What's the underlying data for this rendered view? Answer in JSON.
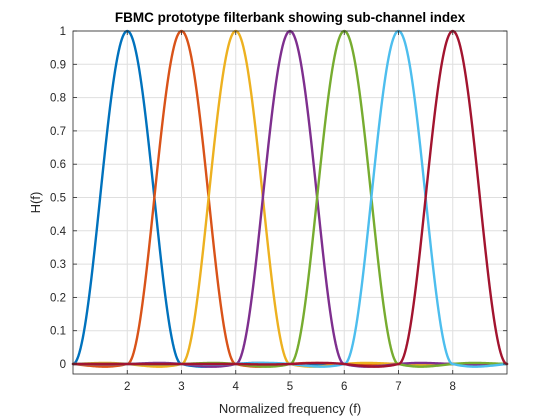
{
  "chart_data": {
    "type": "line",
    "title": "FBMC prototype filterbank showing sub-channel index",
    "xlabel": "Normalized frequency (f)",
    "ylabel": "H(f)",
    "xlim": [
      1,
      9
    ],
    "ylim": [
      -0.03,
      1.0
    ],
    "x_ticks": [
      2,
      3,
      4,
      5,
      6,
      7,
      8
    ],
    "y_ticks": [
      0,
      0.1,
      0.2,
      0.3,
      0.4,
      0.5,
      0.6,
      0.7,
      0.8,
      0.9,
      1
    ],
    "y_tick_labels": [
      "0",
      "0.1",
      "0.2",
      "0.3",
      "0.4",
      "0.5",
      "0.6",
      "0.7",
      "0.8",
      "0.9",
      "1"
    ],
    "grid": true,
    "legend": "none",
    "series": [
      {
        "color": "#0072bd",
        "peak_x": 2,
        "x": [
          1.0,
          1.2,
          1.4,
          1.6,
          1.8,
          2.0,
          2.2,
          2.4,
          2.6,
          2.8,
          3.0
        ],
        "values": [
          0.0,
          0.2,
          0.5,
          0.8,
          0.97,
          1.0,
          0.97,
          0.8,
          0.5,
          0.2,
          0.0
        ]
      },
      {
        "color": "#d95319",
        "peak_x": 3,
        "x": [
          2.0,
          2.2,
          2.4,
          2.6,
          2.8,
          3.0,
          3.2,
          3.4,
          3.6,
          3.8,
          4.0
        ],
        "values": [
          0.0,
          0.2,
          0.5,
          0.8,
          0.97,
          1.0,
          0.97,
          0.8,
          0.5,
          0.2,
          0.0
        ]
      },
      {
        "color": "#edb120",
        "peak_x": 4,
        "x": [
          3.0,
          3.2,
          3.4,
          3.6,
          3.8,
          4.0,
          4.2,
          4.4,
          4.6,
          4.8,
          5.0
        ],
        "values": [
          0.0,
          0.2,
          0.5,
          0.8,
          0.97,
          1.0,
          0.97,
          0.8,
          0.5,
          0.2,
          0.0
        ]
      },
      {
        "color": "#7e2f8e",
        "peak_x": 5,
        "x": [
          4.0,
          4.2,
          4.4,
          4.6,
          4.8,
          5.0,
          5.2,
          5.4,
          5.6,
          5.8,
          6.0
        ],
        "values": [
          0.0,
          0.2,
          0.5,
          0.8,
          0.97,
          1.0,
          0.97,
          0.8,
          0.5,
          0.2,
          0.0
        ]
      },
      {
        "color": "#77ac30",
        "peak_x": 6,
        "x": [
          5.0,
          5.2,
          5.4,
          5.6,
          5.8,
          6.0,
          6.2,
          6.4,
          6.6,
          6.8,
          7.0
        ],
        "values": [
          0.0,
          0.2,
          0.5,
          0.8,
          0.97,
          1.0,
          0.97,
          0.8,
          0.5,
          0.2,
          0.0
        ]
      },
      {
        "color": "#4dbeee",
        "peak_x": 7,
        "x": [
          6.0,
          6.2,
          6.4,
          6.6,
          6.8,
          7.0,
          7.2,
          7.4,
          7.6,
          7.8,
          8.0
        ],
        "values": [
          0.0,
          0.2,
          0.5,
          0.8,
          0.97,
          1.0,
          0.97,
          0.8,
          0.5,
          0.2,
          0.0
        ]
      },
      {
        "color": "#a2142f",
        "peak_x": 8,
        "x": [
          7.0,
          7.2,
          7.4,
          7.6,
          7.8,
          8.0,
          8.2,
          8.4,
          8.6,
          8.8,
          9.0
        ],
        "values": [
          0.0,
          0.2,
          0.5,
          0.8,
          0.97,
          1.0,
          0.97,
          0.8,
          0.5,
          0.2,
          0.0
        ]
      }
    ]
  }
}
